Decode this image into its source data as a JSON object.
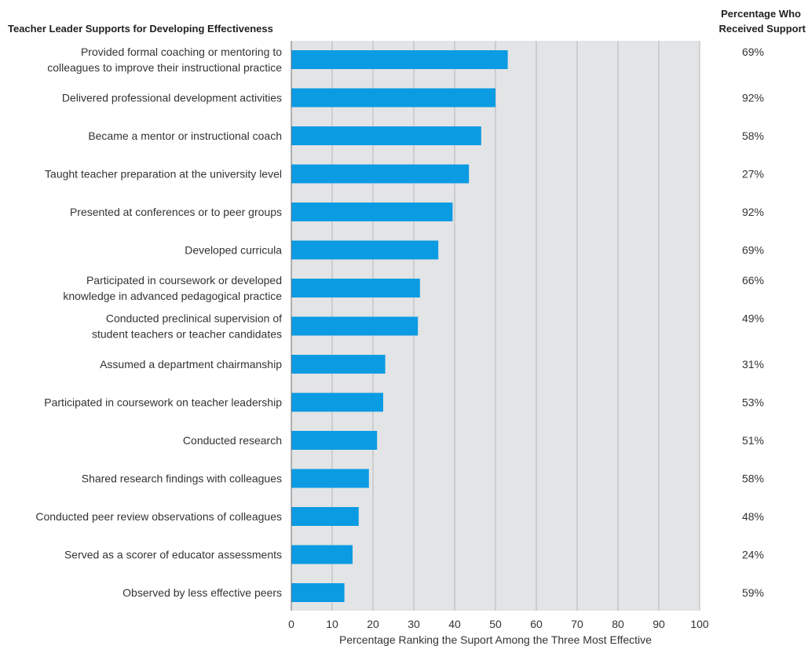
{
  "chart_data": {
    "type": "bar",
    "orientation": "horizontal",
    "title": "Teacher Leader Supports for Developing Effectiveness",
    "right_column_title": [
      "Percentage Who",
      "Received Support"
    ],
    "xlabel": "Percentage Ranking the Suport Among the Three Most Effective",
    "xlim": [
      0,
      100
    ],
    "xticks": [
      0,
      10,
      20,
      30,
      40,
      50,
      60,
      70,
      80,
      90,
      100
    ],
    "grid": true,
    "colors": {
      "bar": "#0b9be3",
      "plot_background": "#e3e4e5",
      "grid": "#b5b6b8"
    },
    "categories": [
      [
        "Provided formal coaching or mentoring to",
        "colleagues to improve their instructional practice"
      ],
      [
        "Delivered professional development activities"
      ],
      [
        "Became a mentor or instructional coach"
      ],
      [
        "Taught teacher preparation at the university level"
      ],
      [
        "Presented at conferences or to peer groups"
      ],
      [
        "Developed curricula"
      ],
      [
        "Participated in coursework or developed",
        "knowledge in advanced pedagogical practice"
      ],
      [
        "Conducted preclinical supervision of",
        "student teachers or teacher candidates"
      ],
      [
        "Assumed a department chairmanship"
      ],
      [
        "Participated in coursework on teacher leadership"
      ],
      [
        "Conducted research"
      ],
      [
        "Shared research findings with colleagues"
      ],
      [
        "Conducted peer review observations of colleagues"
      ],
      [
        "Served as a scorer of educator assessments"
      ],
      [
        "Observed by less effective peers"
      ]
    ],
    "values": [
      53,
      50,
      46.5,
      43.5,
      39.5,
      36,
      31.5,
      31,
      23,
      22.5,
      21,
      19,
      16.5,
      15,
      13
    ],
    "received_support": [
      "69%",
      "92%",
      "58%",
      "27%",
      "92%",
      "69%",
      "66%",
      "49%",
      "31%",
      "53%",
      "51%",
      "58%",
      "48%",
      "24%",
      "59%"
    ]
  }
}
